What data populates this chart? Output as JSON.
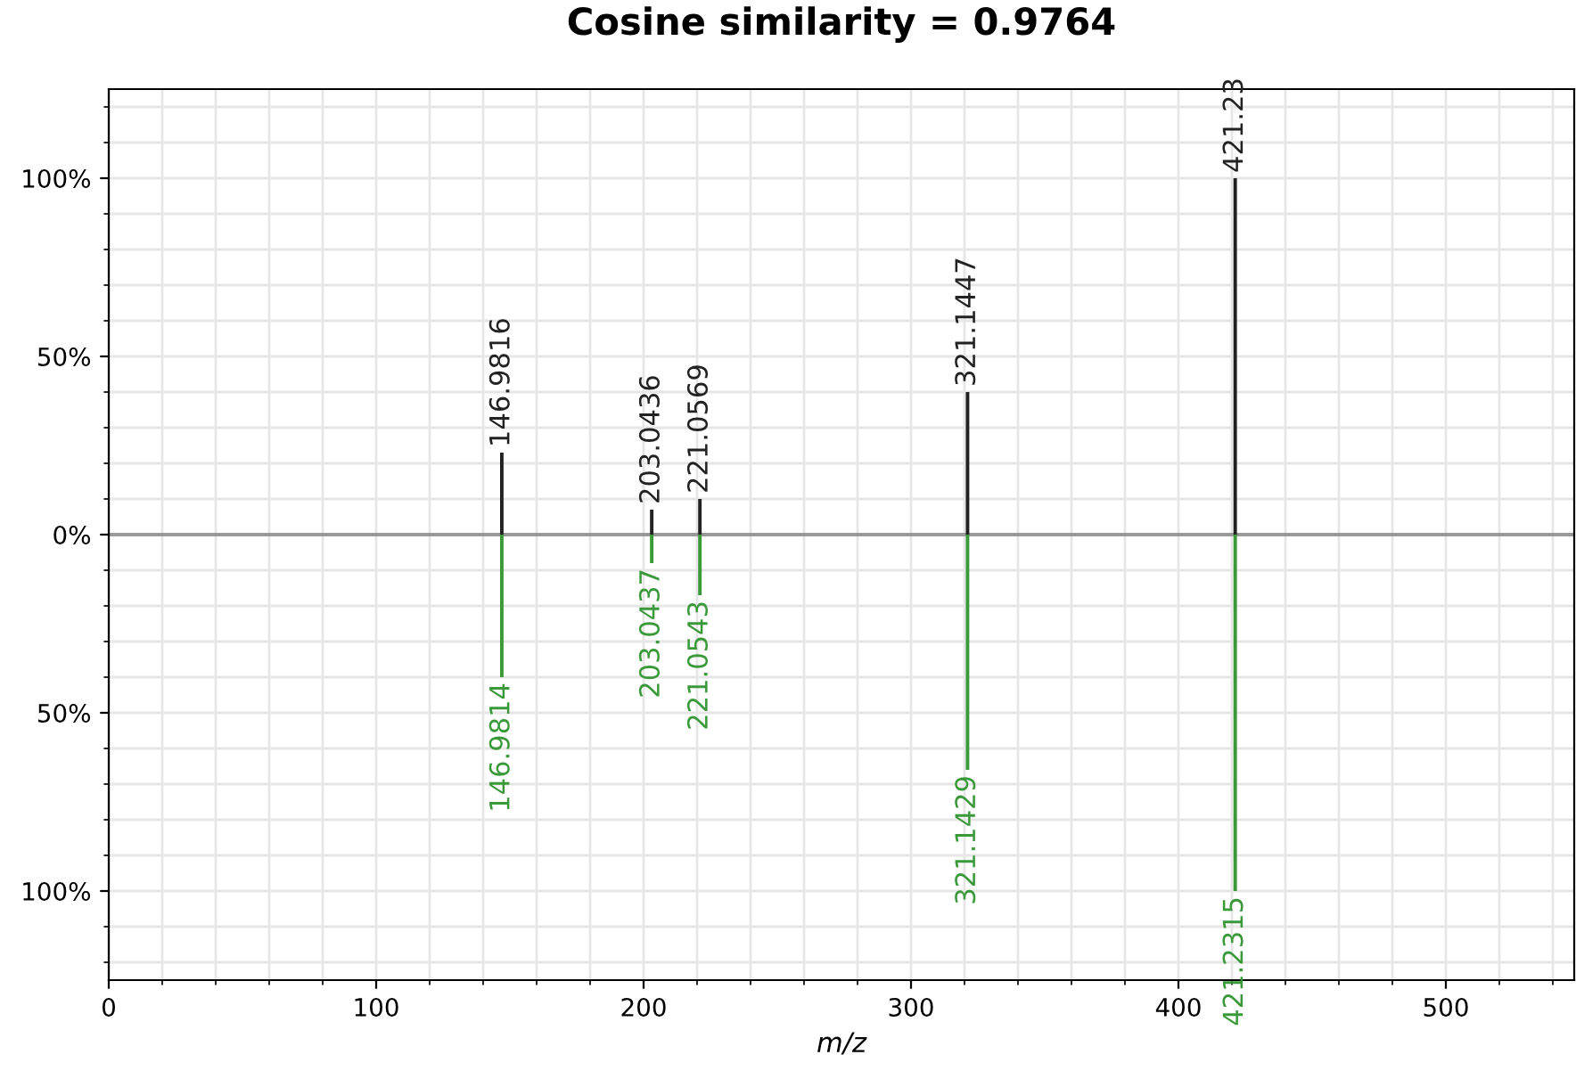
{
  "chart_data": {
    "type": "bar",
    "title": "Cosine similarity = 0.9764",
    "xlabel": "m/z",
    "series": [
      {
        "color": "#222222",
        "x": [
          146.9816,
          203.0436,
          221.0569,
          321.1447,
          421.23
        ],
        "values": [
          23,
          7,
          10,
          40,
          100
        ]
      },
      {
        "color": "#3a9a3a",
        "x": [
          146.9814,
          203.0437,
          221.0543,
          321.1429,
          421.2315
        ],
        "values": [
          -40,
          -8,
          -17,
          -66,
          -100
        ]
      }
    ],
    "annotations": [
      {
        "text": "146.9816",
        "x": 146.9816,
        "y": 23
      },
      {
        "text": "203.0436",
        "x": 203.0436,
        "y": 7
      },
      {
        "text": "221.0569",
        "x": 221.0569,
        "y": 10
      },
      {
        "text": "321.1447",
        "x": 321.1447,
        "y": 40
      },
      {
        "text": "421.23",
        "x": 421.23,
        "y": 100
      },
      {
        "text": "146.9814",
        "x": 146.9814,
        "y": -40
      },
      {
        "text": "203.0437",
        "x": 203.0437,
        "y": -8
      },
      {
        "text": "221.0543",
        "x": 221.0543,
        "y": -17
      },
      {
        "text": "321.1429",
        "x": 321.1429,
        "y": -66
      },
      {
        "text": "421.2315",
        "x": 421.2315,
        "y": -100
      }
    ],
    "xlim": [
      0,
      548
    ],
    "ylim": [
      -125,
      125
    ],
    "xticks": [
      0,
      100,
      200,
      300,
      400,
      500
    ],
    "yticks": [
      {
        "value": -100,
        "label": "100%"
      },
      {
        "value": -50,
        "label": "50%"
      },
      {
        "value": 0,
        "label": "0%"
      },
      {
        "value": 50,
        "label": "50%"
      },
      {
        "value": 100,
        "label": "100%"
      }
    ],
    "ref_lines": [
      {
        "axis": "y",
        "value": 0,
        "color": "#999999"
      }
    ],
    "grid": true
  }
}
